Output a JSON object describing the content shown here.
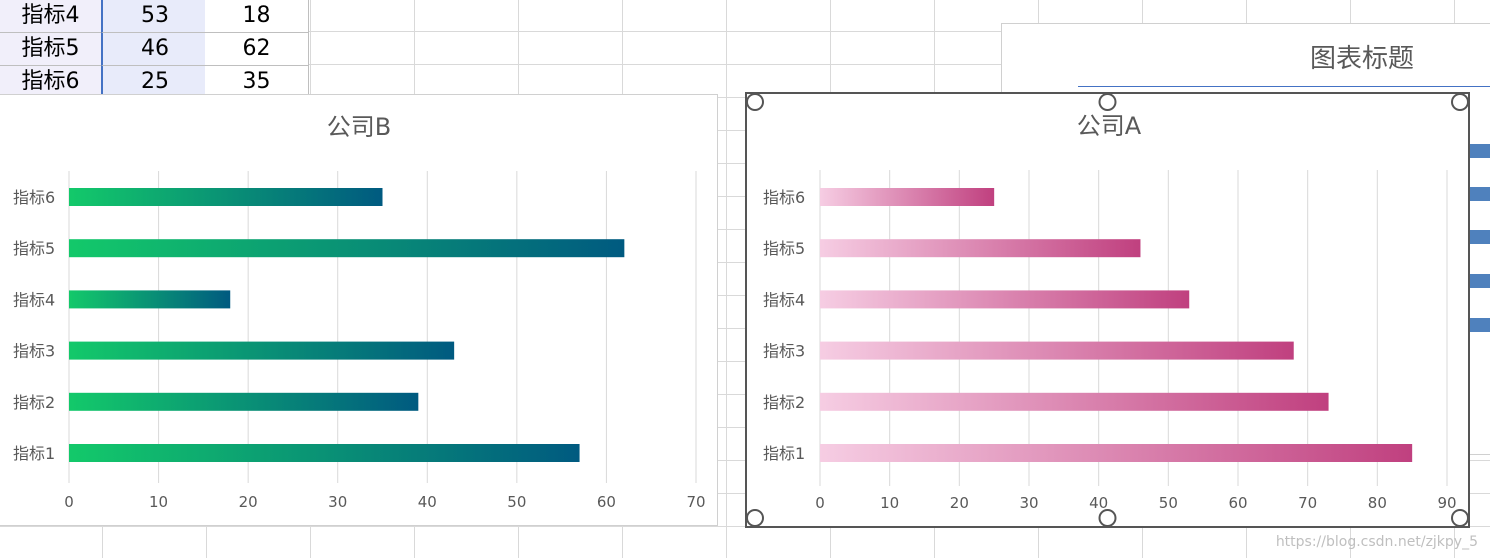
{
  "sheet": {
    "rows": [
      {
        "label": "指标4",
        "a": "53",
        "b": "18"
      },
      {
        "label": "指标5",
        "a": "46",
        "b": "62"
      },
      {
        "label": "指标6",
        "a": "25",
        "b": "35"
      }
    ]
  },
  "background_chart": {
    "title": "图表标题"
  },
  "watermark": "https://blog.csdn.net/zjkpy_5",
  "colors": {
    "b_bar_start": "#13c96a",
    "b_bar_end": "#005a80",
    "a_bar_start": "#f6cde3",
    "a_bar_end": "#c0407f",
    "selection": "#555555",
    "table_border": "#4472c4",
    "label_col": "#f1effa",
    "value_col": "#e8ebfa"
  },
  "chart_data": [
    {
      "type": "bar",
      "orientation": "horizontal",
      "title": "公司B",
      "categories": [
        "指标1",
        "指标2",
        "指标3",
        "指标4",
        "指标5",
        "指标6"
      ],
      "values": [
        57,
        39,
        43,
        18,
        62,
        35
      ],
      "xlim": [
        0,
        70
      ],
      "xticks": [
        "0",
        "10",
        "20",
        "30",
        "40",
        "50",
        "60",
        "70"
      ],
      "grid": true
    },
    {
      "type": "bar",
      "orientation": "horizontal",
      "title": "公司A",
      "categories": [
        "指标1",
        "指标2",
        "指标3",
        "指标4",
        "指标5",
        "指标6"
      ],
      "values": [
        85,
        73,
        68,
        53,
        46,
        25
      ],
      "xlim": [
        0,
        90
      ],
      "xticks": [
        "0",
        "10",
        "20",
        "30",
        "40",
        "50",
        "60",
        "70",
        "80",
        "90"
      ],
      "grid": true,
      "selected": true
    }
  ]
}
